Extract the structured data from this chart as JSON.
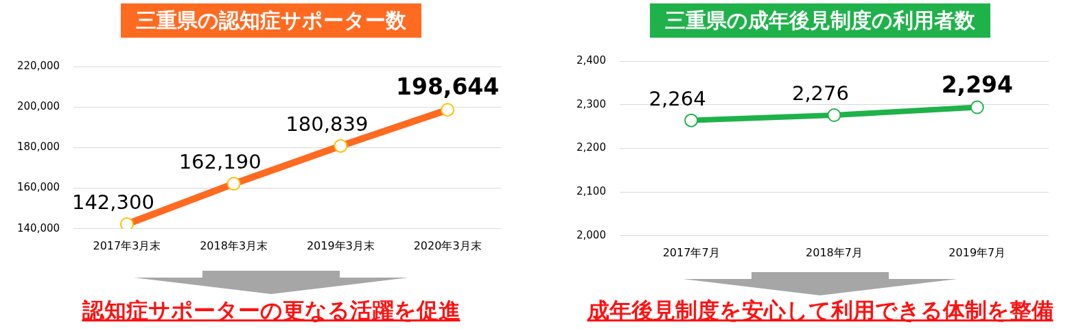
{
  "chart_data": [
    {
      "type": "line",
      "title": "三重県の認知症サポーター数",
      "categories": [
        "2017年3月末",
        "2018年3月末",
        "2019年3月末",
        "2020年3月末"
      ],
      "series": [
        {
          "color": "#ff6a21",
          "values": [
            142300,
            162190,
            180839,
            198644
          ]
        }
      ],
      "ylim": [
        140000,
        220000
      ],
      "yticks": [
        {
          "value": 140000,
          "label": "140,000"
        },
        {
          "value": 160000,
          "label": "160,000"
        },
        {
          "value": 180000,
          "label": "180,000"
        },
        {
          "value": 200000,
          "label": "200,000"
        },
        {
          "value": 220000,
          "label": "220,000"
        }
      ],
      "grid": "y",
      "marker": "circle",
      "value_labels": [
        "142,300",
        "162,190",
        "180,839",
        "198,644"
      ],
      "annotations": [
        "認知症サポーターの更なる活躍を促進"
      ]
    },
    {
      "type": "line",
      "title": "三重県の成年後見制度の利用者数",
      "categories": [
        "2017年7月",
        "2018年7月",
        "2019年7月"
      ],
      "series": [
        {
          "color": "#1fb24a",
          "values": [
            2264,
            2276,
            2294
          ]
        }
      ],
      "ylim": [
        2000,
        2400
      ],
      "yticks": [
        {
          "value": 2000,
          "label": "2,000"
        },
        {
          "value": 2100,
          "label": "2,100"
        },
        {
          "value": 2200,
          "label": "2,200"
        },
        {
          "value": 2300,
          "label": "2,300"
        },
        {
          "value": 2400,
          "label": "2,400"
        }
      ],
      "grid": "y",
      "marker": "circle",
      "value_labels": [
        "2,264",
        "2,276",
        "2,294"
      ],
      "annotations": [
        "成年後見制度を安心して利用できる体制を整備"
      ]
    }
  ]
}
